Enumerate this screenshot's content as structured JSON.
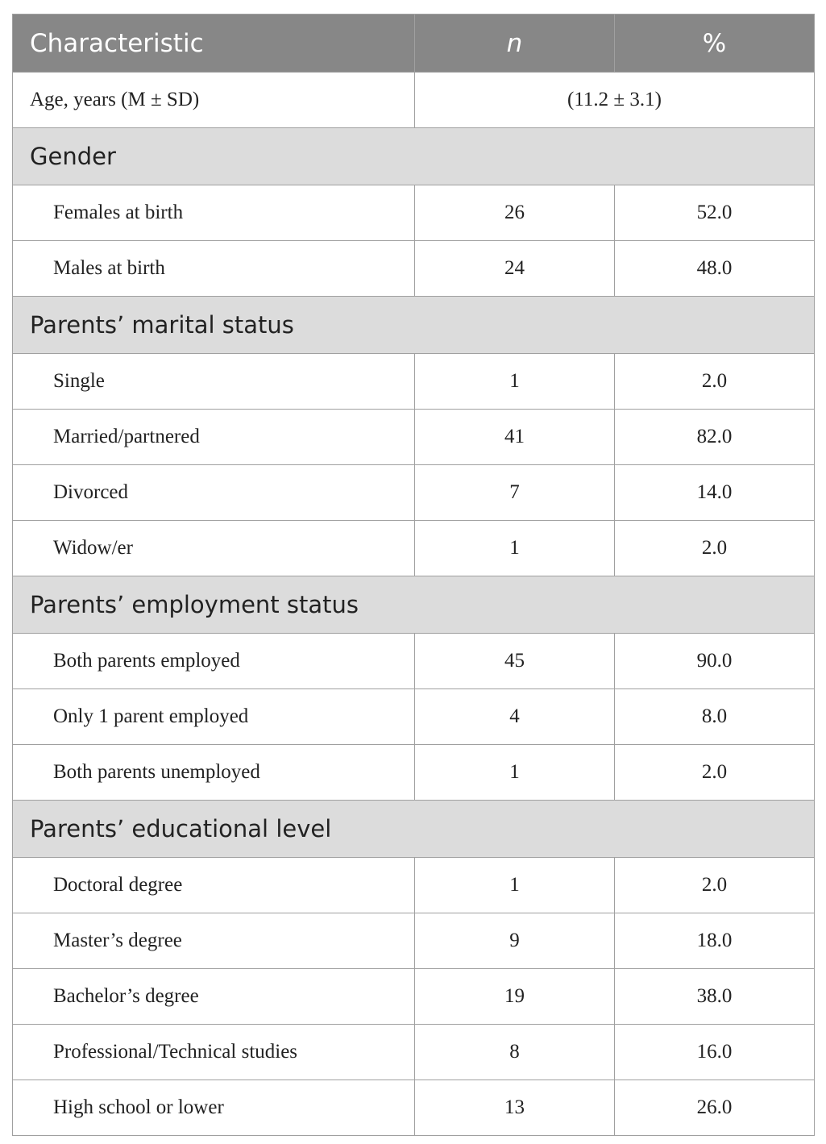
{
  "table": {
    "header": [
      "Characteristic",
      "n",
      "%"
    ],
    "age": {
      "label": "Age, years (M ± SD)",
      "value": "(11.2 ± 3.1)"
    },
    "sections": [
      {
        "title": "Gender",
        "rows": [
          [
            "Females at birth",
            "26",
            "52.0"
          ],
          [
            "Males at birth",
            "24",
            "48.0"
          ]
        ]
      },
      {
        "title": "Parents’ marital status",
        "rows": [
          [
            "Single",
            "1",
            "2.0"
          ],
          [
            "Married/partnered",
            "41",
            "82.0"
          ],
          [
            "Divorced",
            "7",
            "14.0"
          ],
          [
            "Widow/er",
            "1",
            "2.0"
          ]
        ]
      },
      {
        "title": "Parents’ employment status",
        "rows": [
          [
            "Both parents employed",
            "45",
            "90.0"
          ],
          [
            "Only 1 parent employed",
            "4",
            "8.0"
          ],
          [
            "Both parents unemployed",
            "1",
            "2.0"
          ]
        ]
      },
      {
        "title": "Parents’ educational level",
        "rows": [
          [
            "Doctoral degree",
            "1",
            "2.0"
          ],
          [
            "Master’s degree",
            "9",
            "18.0"
          ],
          [
            "Bachelor’s degree",
            "19",
            "38.0"
          ],
          [
            "Professional/Technical studies",
            "8",
            "16.0"
          ],
          [
            "High school or lower",
            "13",
            "26.0"
          ]
        ]
      }
    ]
  }
}
